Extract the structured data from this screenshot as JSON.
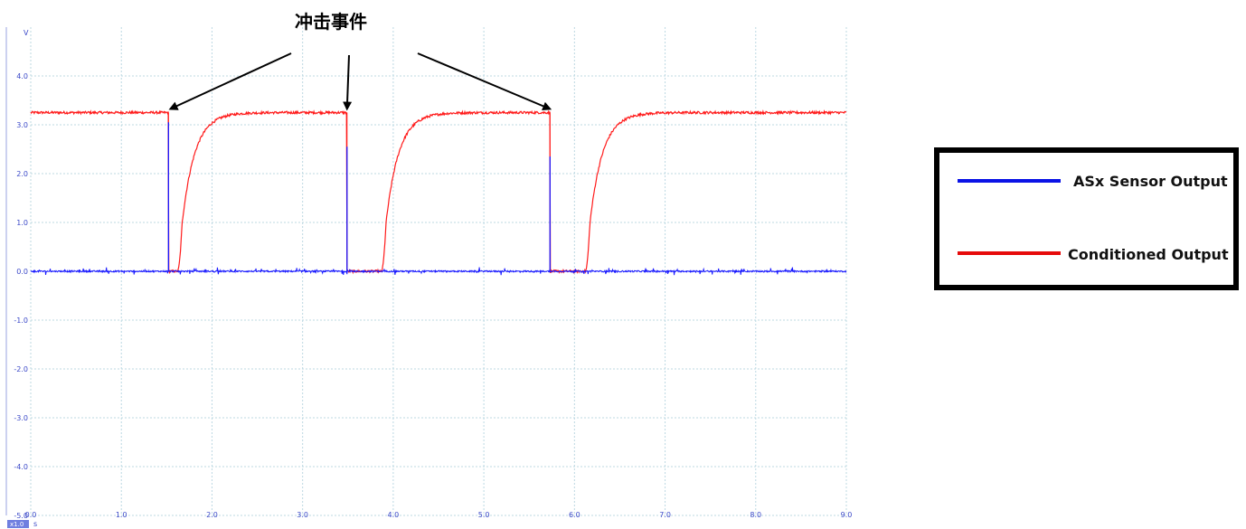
{
  "chart_data": {
    "type": "line",
    "title": "",
    "xlabel": "",
    "ylabel": "",
    "x_unit": "s",
    "y_unit": "V",
    "x_scale_badge": "x1.0",
    "xlim": [
      0,
      9
    ],
    "ylim": [
      -5,
      5
    ],
    "x_ticks": [
      "0.0",
      "1.0",
      "2.0",
      "3.0",
      "4.0",
      "5.0",
      "6.0",
      "7.0",
      "8.0",
      "9.0"
    ],
    "y_ticks": [
      "4.0",
      "3.0",
      "2.0",
      "1.0",
      "0.0",
      "-1.0",
      "-2.0",
      "-3.0",
      "-4.0",
      "-5.0"
    ],
    "grid": true,
    "series": [
      {
        "name": "ASx Sensor Output",
        "color": "#1a1aff",
        "baseline": 0.0,
        "spikes": [
          {
            "x": 1.52,
            "y": 3.05
          },
          {
            "x": 3.49,
            "y": 2.55
          },
          {
            "x": 5.73,
            "y": 2.35
          }
        ]
      },
      {
        "name": "Conditioned Output",
        "color": "#ff1a1a",
        "high": 3.25,
        "low": 0.0,
        "drops_at": [
          1.52,
          3.49,
          5.73
        ],
        "rise_starts": [
          1.62,
          3.87,
          6.12
        ]
      }
    ],
    "annotation": {
      "text": "冲击事件",
      "targets": [
        1.52,
        3.49,
        5.73
      ]
    },
    "legend": {
      "position": "right",
      "items": [
        {
          "label": "ASx Sensor Output",
          "color": "#0a12e6"
        },
        {
          "label": "Conditioned Output",
          "color": "#e60a0a"
        }
      ]
    }
  }
}
